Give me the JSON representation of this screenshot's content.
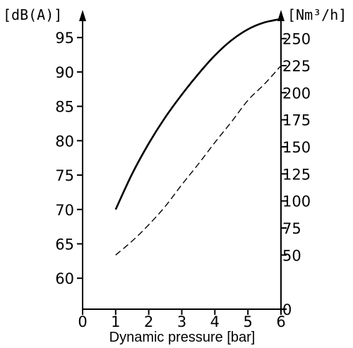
{
  "chart_data": {
    "type": "line",
    "title": "",
    "xlabel": "Dynamic pressure [bar]",
    "ylabel_left": "[dB(A)]",
    "ylabel_right": "[Nm³/h]",
    "xlim": [
      0,
      6
    ],
    "ylim_left": [
      55.5,
      98
    ],
    "ylim_right": [
      0,
      270
    ],
    "x_ticks": [
      0,
      1,
      2,
      3,
      4,
      5,
      6
    ],
    "y_left_ticks": [
      60,
      65,
      70,
      75,
      80,
      85,
      90,
      95
    ],
    "y_right_ticks": [
      0,
      50,
      75,
      100,
      125,
      150,
      175,
      200,
      225,
      250
    ],
    "grid": false,
    "legend": "none",
    "series": [
      {
        "axis": "left",
        "style": "solid",
        "x": [
          1,
          1.5,
          2,
          2.5,
          3,
          3.5,
          4,
          4.5,
          5,
          5.5,
          6
        ],
        "y": [
          70,
          75.2,
          79.6,
          83.4,
          86.7,
          89.7,
          92.4,
          94.6,
          96.2,
          97.2,
          97.7
        ]
      },
      {
        "axis": "right",
        "style": "dashed",
        "x": [
          1,
          1.5,
          2,
          2.5,
          3,
          3.5,
          4,
          4.5,
          5,
          5.5,
          6
        ],
        "y": [
          50,
          63,
          78,
          95,
          115,
          134,
          154,
          173,
          193,
          208,
          225
        ]
      }
    ]
  }
}
